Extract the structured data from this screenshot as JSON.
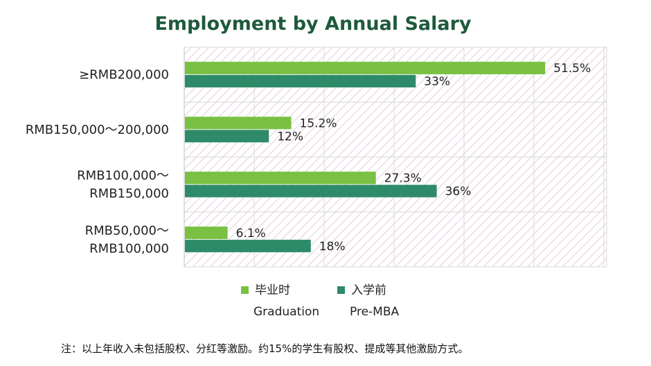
{
  "chart_data": {
    "type": "bar",
    "orientation": "horizontal",
    "title": "Employment by Annual Salary",
    "categories": [
      [
        "≥RMB200,000"
      ],
      [
        "RMB150,000～200,000"
      ],
      [
        "RMB100,000～",
        "RMB150,000"
      ],
      [
        "RMB50,000～",
        "RMB100,000"
      ]
    ],
    "series": [
      {
        "name": "毕业时",
        "name_en": "Graduation",
        "color": "#7ac143",
        "values": [
          51.5,
          15.2,
          27.3,
          6.1
        ],
        "labels": [
          "51.5%",
          "15.2%",
          "27.3%",
          "6.1%"
        ]
      },
      {
        "name": "入学前",
        "name_en": "Pre-MBA",
        "color": "#2e8b6a",
        "values": [
          33,
          12,
          36,
          18
        ],
        "labels": [
          "33%",
          "12%",
          "36%",
          "18%"
        ]
      }
    ],
    "xlim": [
      0,
      60
    ],
    "grid": true,
    "legend": "bottom"
  },
  "note": "注：以上年收入未包括股权、分红等激励。约15%的学生有股权、提成等其他激励方式。"
}
